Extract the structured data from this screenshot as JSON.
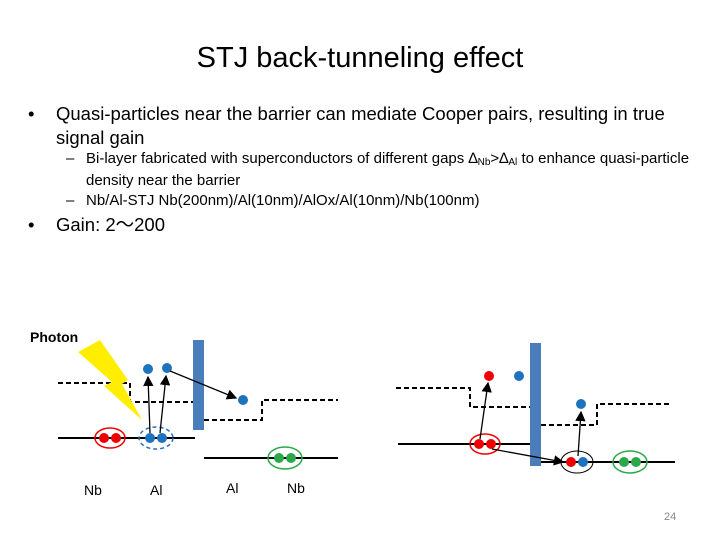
{
  "title": "STJ back-tunneling effect",
  "bullets": [
    {
      "text": "Quasi-particles near the barrier can mediate Cooper pairs, resulting in true signal gain",
      "sub": [
        {
          "parts": [
            "Bi-layer fabricated with superconductors of different gaps ",
            "∆",
            "Nb",
            ">",
            "∆",
            "Al",
            " to enhance quasi-particle density near the barrier"
          ]
        },
        {
          "parts": [
            "Nb/Al-STJ Nb(200nm)/Al(10nm)/AlOx/Al(10nm)/Nb(100nm)"
          ]
        }
      ]
    },
    {
      "text": "Gain: 2～200",
      "sub": []
    }
  ],
  "diagram": {
    "photon": "Photon",
    "layers": [
      "Nb",
      "Al",
      "Al",
      "Nb"
    ]
  },
  "page_number": "24"
}
